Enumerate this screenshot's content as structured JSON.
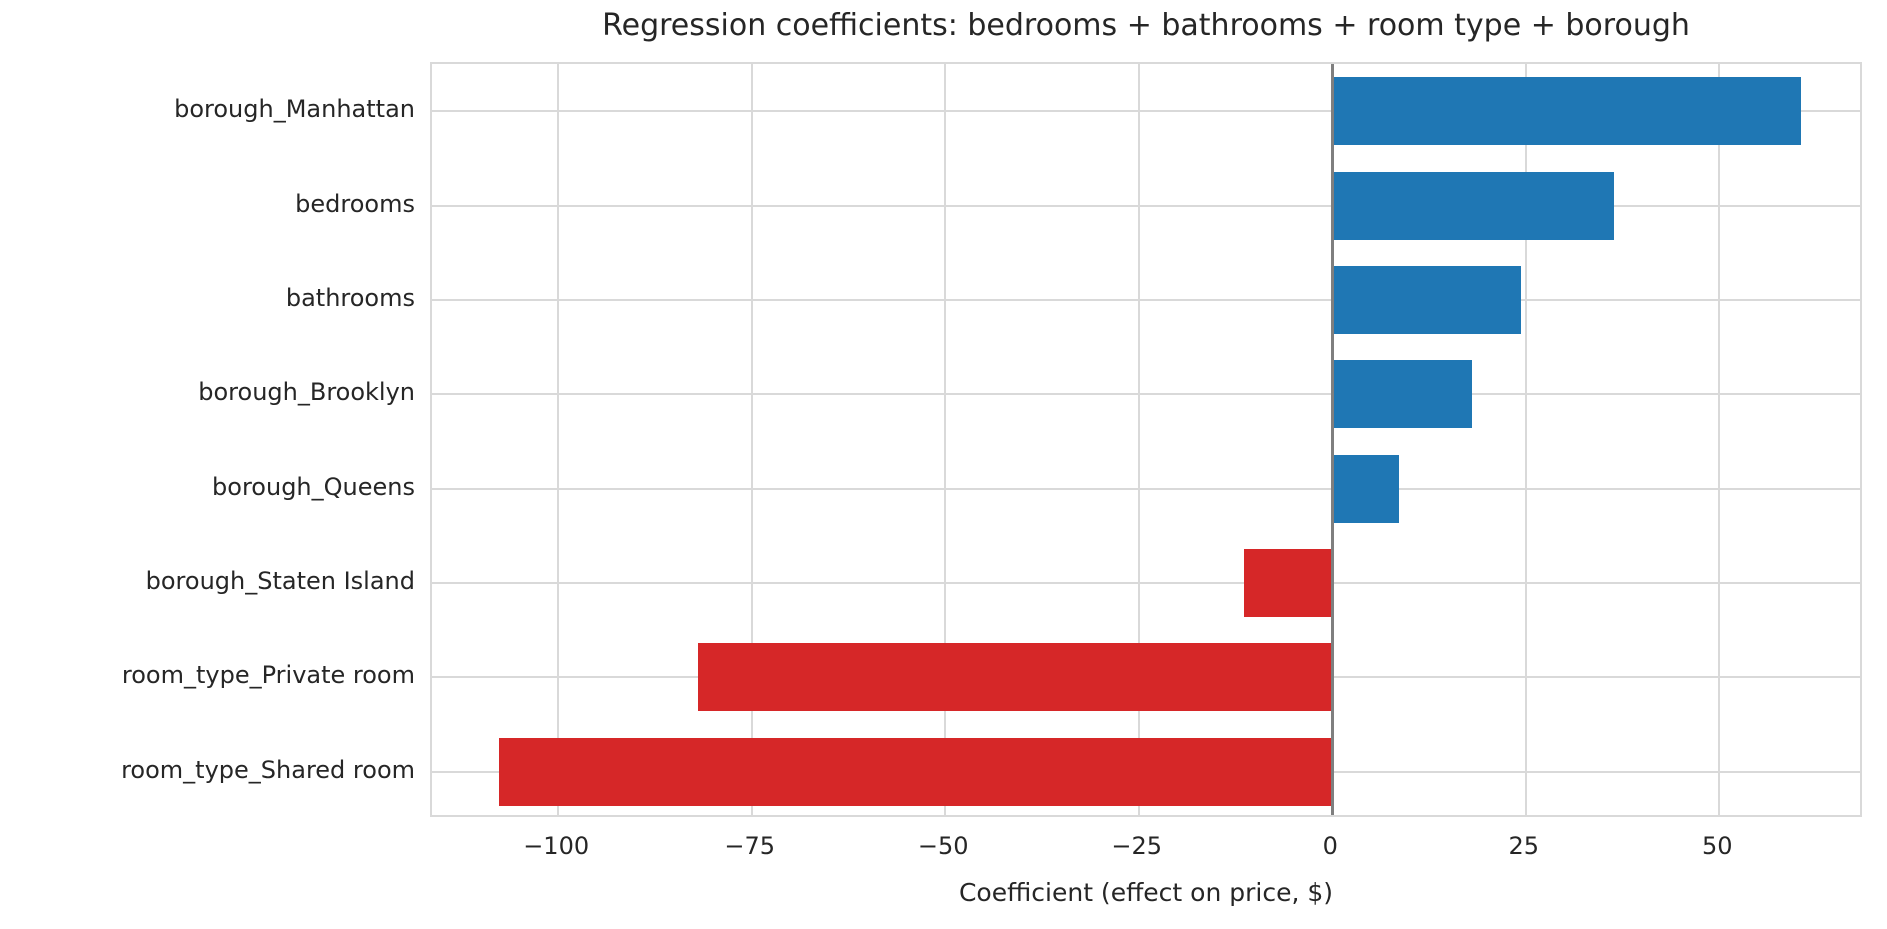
{
  "chart_data": {
    "type": "bar",
    "orientation": "horizontal",
    "title": "Regression coefficients: bedrooms + bathrooms + room type + borough",
    "xlabel": "Coefficient (effect on price, $)",
    "ylabel": "",
    "categories": [
      "borough_Manhattan",
      "bedrooms",
      "bathrooms",
      "borough_Brooklyn",
      "borough_Queens",
      "borough_Staten Island",
      "room_type_Private room",
      "room_type_Shared room"
    ],
    "values": [
      60.6,
      36.4,
      24.4,
      18.0,
      8.6,
      -11.4,
      -81.9,
      -107.6
    ],
    "xlim": [
      -116.3,
      68.7
    ],
    "xticks": [
      -100,
      -75,
      -50,
      -25,
      0,
      25,
      50
    ],
    "xtick_labels": [
      "−100",
      "−75",
      "−50",
      "−25",
      "0",
      "25",
      "50"
    ],
    "grid": true,
    "legend": false,
    "zero_line": 0,
    "colors": {
      "positive": "#1f77b4",
      "negative": "#d62728",
      "grid": "#d9d9d9",
      "zero_line": "#7f7f7f",
      "text": "#262626",
      "background": "#ffffff"
    }
  }
}
